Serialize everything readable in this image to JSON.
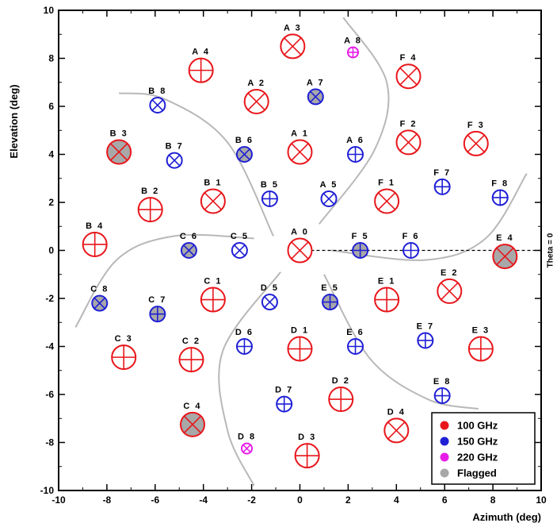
{
  "chart_data": {
    "type": "scatter",
    "xlabel": "Azimuth (deg)",
    "ylabel": "Elevation (deg)",
    "xlim": [
      -10,
      10
    ],
    "ylim": [
      -10,
      10
    ],
    "x_ticks": [
      -10,
      -8,
      -6,
      -4,
      -2,
      0,
      2,
      4,
      6,
      8,
      10
    ],
    "y_ticks": [
      -10,
      -8,
      -6,
      -4,
      -2,
      0,
      2,
      4,
      6,
      8,
      10
    ],
    "grid": false,
    "legend_position": "bottom-right",
    "reference_line": {
      "label": "Theta = 0",
      "y": 0,
      "x_start": 0,
      "x_end": 10,
      "style": "dashed"
    },
    "series": [
      {
        "name": "100 GHz",
        "color": "#e8161b"
      },
      {
        "name": "150 GHz",
        "color": "#1f1fd6"
      },
      {
        "name": "220 GHz",
        "color": "#e81ce8"
      },
      {
        "name": "Flagged",
        "color": "#a8a8a8"
      }
    ],
    "points": [
      {
        "label": "A 0",
        "x": 0,
        "y": 0,
        "band": "100 GHz",
        "mark": "x",
        "flagged": false
      },
      {
        "label": "A 1",
        "x": 0,
        "y": 4.1,
        "band": "100 GHz",
        "mark": "x",
        "flagged": false
      },
      {
        "label": "A 2",
        "x": -1.8,
        "y": 6.2,
        "band": "100 GHz",
        "mark": "x",
        "flagged": false
      },
      {
        "label": "A 3",
        "x": -0.3,
        "y": 8.5,
        "band": "100 GHz",
        "mark": "x",
        "flagged": false
      },
      {
        "label": "A 4",
        "x": -4.1,
        "y": 7.5,
        "band": "100 GHz",
        "mark": "+",
        "flagged": false
      },
      {
        "label": "A 5",
        "x": 1.2,
        "y": 2.15,
        "band": "150 GHz",
        "mark": "x",
        "flagged": false
      },
      {
        "label": "A 6",
        "x": 2.3,
        "y": 4.0,
        "band": "150 GHz",
        "mark": "+",
        "flagged": false
      },
      {
        "label": "A 7",
        "x": 0.65,
        "y": 6.4,
        "band": "150 GHz",
        "mark": "x",
        "flagged": true
      },
      {
        "label": "A 8",
        "x": 2.2,
        "y": 8.25,
        "band": "220 GHz",
        "mark": "+",
        "flagged": false
      },
      {
        "label": "B 1",
        "x": -3.6,
        "y": 2.05,
        "band": "100 GHz",
        "mark": "x",
        "flagged": false
      },
      {
        "label": "B 2",
        "x": -6.2,
        "y": 1.7,
        "band": "100 GHz",
        "mark": "+",
        "flagged": false
      },
      {
        "label": "B 3",
        "x": -7.5,
        "y": 4.1,
        "band": "100 GHz",
        "mark": "x",
        "flagged": true
      },
      {
        "label": "B 4",
        "x": -8.5,
        "y": 0.25,
        "band": "100 GHz",
        "mark": "+",
        "flagged": false
      },
      {
        "label": "B 5",
        "x": -1.25,
        "y": 2.15,
        "band": "150 GHz",
        "mark": "+",
        "flagged": false
      },
      {
        "label": "B 6",
        "x": -2.3,
        "y": 4.0,
        "band": "150 GHz",
        "mark": "x",
        "flagged": true
      },
      {
        "label": "B 7",
        "x": -5.2,
        "y": 3.75,
        "band": "150 GHz",
        "mark": "x",
        "flagged": false
      },
      {
        "label": "B 8",
        "x": -5.9,
        "y": 6.05,
        "band": "150 GHz",
        "mark": "x",
        "flagged": false
      },
      {
        "label": "C 1",
        "x": -3.6,
        "y": -2.05,
        "band": "100 GHz",
        "mark": "+",
        "flagged": false
      },
      {
        "label": "C 2",
        "x": -4.5,
        "y": -4.55,
        "band": "100 GHz",
        "mark": "+",
        "flagged": false
      },
      {
        "label": "C 3",
        "x": -7.3,
        "y": -4.45,
        "band": "100 GHz",
        "mark": "+",
        "flagged": false
      },
      {
        "label": "C 4",
        "x": -4.45,
        "y": -7.25,
        "band": "100 GHz",
        "mark": "x",
        "flagged": true
      },
      {
        "label": "C 5",
        "x": -2.5,
        "y": 0,
        "band": "150 GHz",
        "mark": "x",
        "flagged": false
      },
      {
        "label": "C 6",
        "x": -4.6,
        "y": 0,
        "band": "150 GHz",
        "mark": "x",
        "flagged": true
      },
      {
        "label": "C 7",
        "x": -5.9,
        "y": -2.65,
        "band": "150 GHz",
        "mark": "+",
        "flagged": true
      },
      {
        "label": "C 8",
        "x": -8.3,
        "y": -2.2,
        "band": "150 GHz",
        "mark": "x",
        "flagged": true
      },
      {
        "label": "D 1",
        "x": 0,
        "y": -4.1,
        "band": "100 GHz",
        "mark": "+",
        "flagged": false
      },
      {
        "label": "D 2",
        "x": 1.7,
        "y": -6.2,
        "band": "100 GHz",
        "mark": "+",
        "flagged": false
      },
      {
        "label": "D 3",
        "x": 0.3,
        "y": -8.55,
        "band": "100 GHz",
        "mark": "+",
        "flagged": false
      },
      {
        "label": "D 4",
        "x": 4.0,
        "y": -7.5,
        "band": "100 GHz",
        "mark": "x",
        "flagged": false
      },
      {
        "label": "D 5",
        "x": -1.25,
        "y": -2.15,
        "band": "150 GHz",
        "mark": "x",
        "flagged": false
      },
      {
        "label": "D 6",
        "x": -2.3,
        "y": -4.0,
        "band": "150 GHz",
        "mark": "+",
        "flagged": false
      },
      {
        "label": "D 7",
        "x": -0.65,
        "y": -6.4,
        "band": "150 GHz",
        "mark": "+",
        "flagged": false
      },
      {
        "label": "D 8",
        "x": -2.2,
        "y": -8.25,
        "band": "220 GHz",
        "mark": "x",
        "flagged": false
      },
      {
        "label": "E 1",
        "x": 3.6,
        "y": -2.05,
        "band": "100 GHz",
        "mark": "+",
        "flagged": false
      },
      {
        "label": "E 2",
        "x": 6.2,
        "y": -1.7,
        "band": "100 GHz",
        "mark": "x",
        "flagged": false
      },
      {
        "label": "E 3",
        "x": 7.5,
        "y": -4.1,
        "band": "100 GHz",
        "mark": "+",
        "flagged": false
      },
      {
        "label": "E 4",
        "x": 8.5,
        "y": -0.25,
        "band": "100 GHz",
        "mark": "x",
        "flagged": true
      },
      {
        "label": "E 5",
        "x": 1.25,
        "y": -2.15,
        "band": "150 GHz",
        "mark": "+",
        "flagged": true
      },
      {
        "label": "E 6",
        "x": 2.3,
        "y": -4.0,
        "band": "150 GHz",
        "mark": "+",
        "flagged": false
      },
      {
        "label": "E 7",
        "x": 5.2,
        "y": -3.75,
        "band": "150 GHz",
        "mark": "+",
        "flagged": false
      },
      {
        "label": "E 8",
        "x": 5.9,
        "y": -6.05,
        "band": "150 GHz",
        "mark": "+",
        "flagged": false
      },
      {
        "label": "F 1",
        "x": 3.6,
        "y": 2.05,
        "band": "100 GHz",
        "mark": "x",
        "flagged": false
      },
      {
        "label": "F 2",
        "x": 4.5,
        "y": 4.5,
        "band": "100 GHz",
        "mark": "x",
        "flagged": false
      },
      {
        "label": "F 3",
        "x": 7.3,
        "y": 4.45,
        "band": "100 GHz",
        "mark": "x",
        "flagged": false
      },
      {
        "label": "F 4",
        "x": 4.5,
        "y": 7.25,
        "band": "100 GHz",
        "mark": "x",
        "flagged": false
      },
      {
        "label": "F 5",
        "x": 2.5,
        "y": 0,
        "band": "150 GHz",
        "mark": "+",
        "flagged": true
      },
      {
        "label": "F 6",
        "x": 4.6,
        "y": 0,
        "band": "150 GHz",
        "mark": "+",
        "flagged": false
      },
      {
        "label": "F 7",
        "x": 5.9,
        "y": 2.65,
        "band": "150 GHz",
        "mark": "+",
        "flagged": false
      },
      {
        "label": "F 8",
        "x": 8.3,
        "y": 2.2,
        "band": "150 GHz",
        "mark": "+",
        "flagged": false
      }
    ],
    "arcs": [
      {
        "points": [
          [
            0.8,
            1.1
          ],
          [
            3.1,
            4.2
          ],
          [
            3.6,
            7.0
          ],
          [
            1.8,
            9.7
          ]
        ]
      },
      {
        "points": [
          [
            -1.1,
            0.6
          ],
          [
            -3.0,
            4.5
          ],
          [
            -5.6,
            6.3
          ],
          [
            -7.5,
            6.55
          ]
        ]
      },
      {
        "points": [
          [
            -1.9,
            0.5
          ],
          [
            -5.2,
            0.6
          ],
          [
            -7.6,
            -0.4
          ],
          [
            -9.3,
            -3.2
          ]
        ]
      },
      {
        "points": [
          [
            -0.8,
            -0.9
          ],
          [
            -3.2,
            -4.2
          ],
          [
            -3.0,
            -7.5
          ],
          [
            -1.9,
            -9.8
          ]
        ]
      },
      {
        "points": [
          [
            1.0,
            -1.0
          ],
          [
            2.9,
            -4.5
          ],
          [
            5.3,
            -6.2
          ],
          [
            7.4,
            -6.6
          ]
        ]
      },
      {
        "points": [
          [
            1.3,
            0.0
          ],
          [
            5.2,
            -0.4
          ],
          [
            7.7,
            0.5
          ],
          [
            9.4,
            3.2
          ]
        ]
      }
    ]
  }
}
